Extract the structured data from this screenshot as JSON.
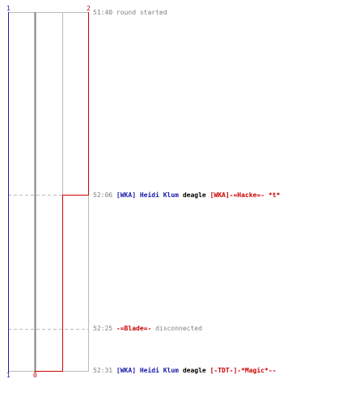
{
  "colors": {
    "team_a": "#1a1aaa",
    "team_b": "#cc0000",
    "neutral": "#808080"
  },
  "scores": {
    "team_a_top": "1",
    "team_a_bottom": "1",
    "team_b_top": "2",
    "team_b_bottom": "0"
  },
  "events": [
    {
      "time": "51:40",
      "message": "round started"
    },
    {
      "time": "52:06",
      "killer_tag": "[WKA]",
      "killer_name": " Heidi Klum",
      "weapon": "deagle",
      "victim_tag": "[WKA]",
      "victim_name": "-=Hacke=- *t*"
    },
    {
      "time": "52:25",
      "player": "-=Blade=-",
      "message": "disconnected"
    },
    {
      "time": "52:31",
      "killer_tag": "[WKA]",
      "killer_name": " Heidi Klum",
      "weapon": "deagle",
      "victim_tag": "[-TDT-]",
      "victim_name": "-*Magic*--"
    }
  ]
}
